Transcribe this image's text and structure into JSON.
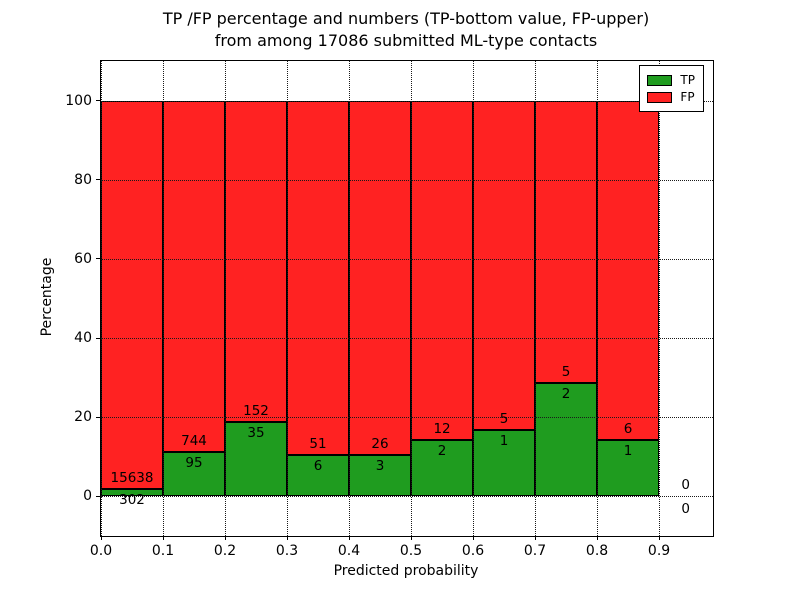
{
  "chart_data": {
    "type": "bar",
    "stacked": true,
    "title_line1": "TP /FP percentage and numbers (TP-bottom value, FP-upper)",
    "title_line2": "from among 17086 submitted ML-type contacts",
    "xlabel": "Predicted probability",
    "ylabel": "Percentage",
    "x_ticks": [
      "0.0",
      "0.1",
      "0.2",
      "0.3",
      "0.4",
      "0.5",
      "0.6",
      "0.7",
      "0.8",
      "0.9"
    ],
    "x_tick_values": [
      0.0,
      0.1,
      0.2,
      0.3,
      0.4,
      0.5,
      0.6,
      0.7,
      0.8,
      0.9
    ],
    "y_ticks": [
      0,
      20,
      40,
      60,
      80,
      100
    ],
    "xlim": [
      0,
      0.987
    ],
    "ylim": [
      -10,
      110
    ],
    "bin_width": 0.1,
    "grid": "dotted",
    "legend_position": "upper right",
    "legend": [
      {
        "label": "TP",
        "color": "#1f9c1f"
      },
      {
        "label": "FP",
        "color": "#ff2222"
      }
    ],
    "colors": {
      "tp": "#1f9c1f",
      "fp": "#ff2222"
    },
    "total_contacts": 17086,
    "bins": [
      {
        "x0": 0.0,
        "tp": 302,
        "fp": 15638
      },
      {
        "x0": 0.1,
        "tp": 95,
        "fp": 744
      },
      {
        "x0": 0.2,
        "tp": 35,
        "fp": 152
      },
      {
        "x0": 0.3,
        "tp": 6,
        "fp": 51
      },
      {
        "x0": 0.4,
        "tp": 3,
        "fp": 26
      },
      {
        "x0": 0.5,
        "tp": 2,
        "fp": 12
      },
      {
        "x0": 0.6,
        "tp": 1,
        "fp": 5
      },
      {
        "x0": 0.7,
        "tp": 2,
        "fp": 5
      },
      {
        "x0": 0.8,
        "tp": 1,
        "fp": 6
      }
    ],
    "last_bin": {
      "tp": 0,
      "fp": 0,
      "x_center": 0.943
    }
  }
}
